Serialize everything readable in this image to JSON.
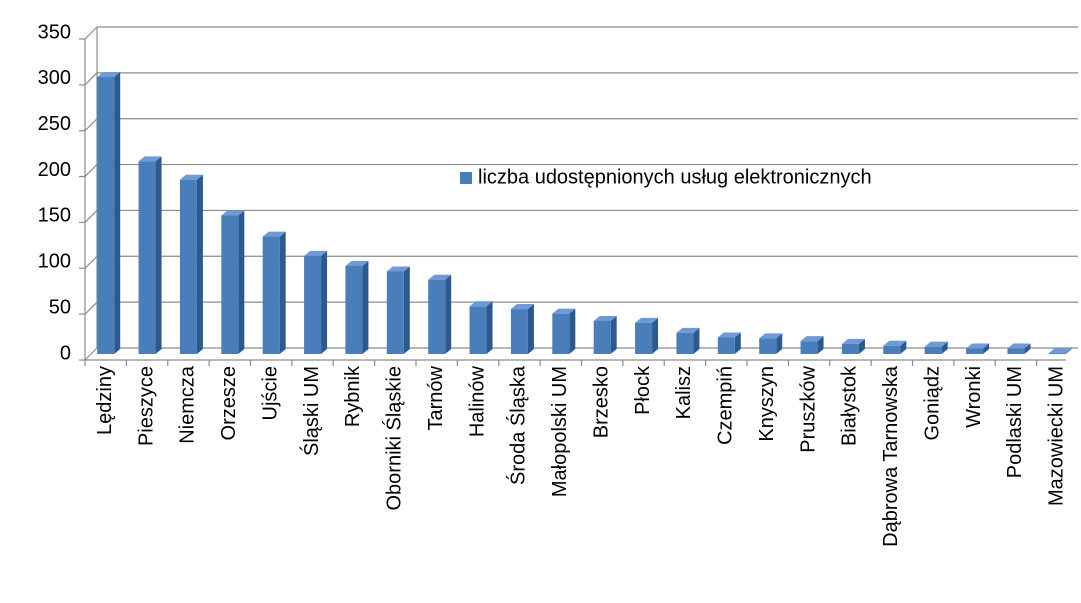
{
  "chart_data": {
    "type": "bar",
    "categories": [
      "Lędziny",
      "Pieszyce",
      "Niemcza",
      "Orzesze",
      "Ujście",
      "Śląski UM",
      "Rybnik",
      "Oborniki Śląskie",
      "Tarnów",
      "Halinów",
      "Środa Śląska",
      "Małopolski UM",
      "Brzesko",
      "Płock",
      "Kalisz",
      "Czempiń",
      "Knyszyn",
      "Pruszków",
      "Białystok",
      "Dąbrowa Tarnowska",
      "Goniądz",
      "Wronki",
      "Podlaski UM",
      "Mazowiecki UM"
    ],
    "series": [
      {
        "name": "liczba udostępnionych usług elektronicznych",
        "color": "#4a7ebb",
        "values": [
          302,
          210,
          190,
          151,
          128,
          107,
          96,
          90,
          81,
          52,
          49,
          44,
          36,
          34,
          23,
          18,
          17,
          14,
          11,
          9,
          8,
          6,
          6,
          1
        ]
      }
    ],
    "ylim": [
      0,
      350
    ],
    "yticks": [
      0,
      50,
      100,
      150,
      200,
      250,
      300,
      350
    ],
    "grid": true,
    "legend": "center"
  }
}
